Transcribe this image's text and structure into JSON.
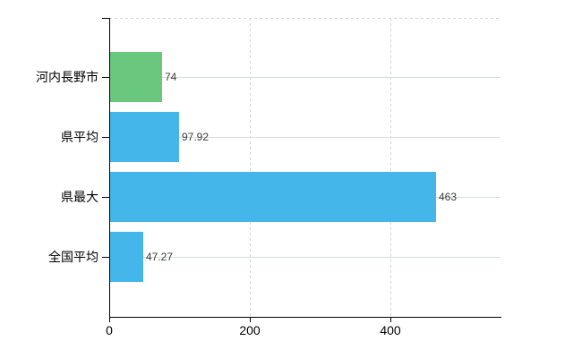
{
  "chart_data": {
    "type": "bar",
    "orientation": "horizontal",
    "title": "",
    "xlabel": "",
    "ylabel": "",
    "categories": [
      "河内長野市",
      "県平均",
      "県最大",
      "全国平均"
    ],
    "values": [
      74,
      97.92,
      463,
      47.27
    ],
    "value_labels": [
      "74",
      "97.92",
      "463",
      "47.27"
    ],
    "bar_colors": [
      "#69c77e",
      "#45b6e9",
      "#45b6e9",
      "#45b6e9"
    ],
    "x_ticks": [
      "0",
      "200",
      "400"
    ],
    "x_tick_values": [
      0,
      200,
      400
    ],
    "xlim": [
      0,
      556
    ],
    "grid": {
      "horizontal": "solid",
      "vertical": "dashed",
      "top_border": "dashed"
    },
    "legend": false
  },
  "colors": {
    "background": "#ffffff",
    "axis": "#000000",
    "grid_solid": "#d5ddd5",
    "grid_dashed": "#d7d3d7",
    "value_label": "#3c3c3c",
    "tick_label": "#000000",
    "category_label": "#000000",
    "green_bar": "#69c77e",
    "blue_bar": "#45b6e9"
  }
}
